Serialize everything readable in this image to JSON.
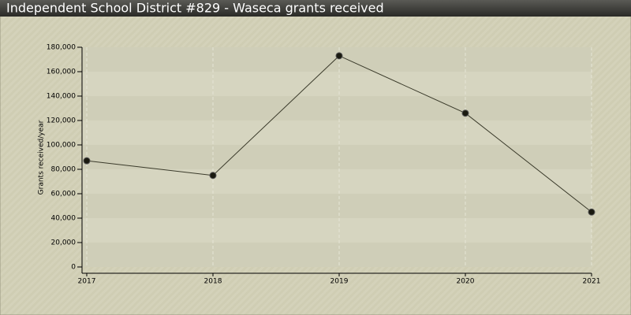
{
  "chart_data": {
    "type": "line",
    "title": "Independent School District #829 - Waseca grants received",
    "y_label": "Grants received/year",
    "x": [
      2017,
      2018,
      2019,
      2020,
      2021
    ],
    "series": [
      {
        "name": "Grants received",
        "color": "#3a3a2a",
        "values": [
          87000,
          75000,
          173000,
          126000,
          45000
        ]
      }
    ],
    "xlim": [
      2017,
      2021
    ],
    "xticks": [
      2017,
      2018,
      2019,
      2020,
      2021
    ],
    "ylim": [
      0,
      180000
    ],
    "yticks": [
      0,
      {
        "value": 20000,
        "label": "20,000"
      },
      {
        "value": 40000,
        "label": "40,000"
      },
      {
        "value": 60000,
        "label": "60,000"
      },
      {
        "value": 80000,
        "label": "80,000"
      },
      {
        "value": 100000,
        "label": "100,000"
      },
      {
        "value": 120000,
        "label": "120,000"
      },
      {
        "value": 140000,
        "label": "140,000"
      },
      {
        "value": 160000,
        "label": "160,000"
      },
      {
        "value": 180000,
        "label": "180,000"
      }
    ],
    "grid": true
  }
}
